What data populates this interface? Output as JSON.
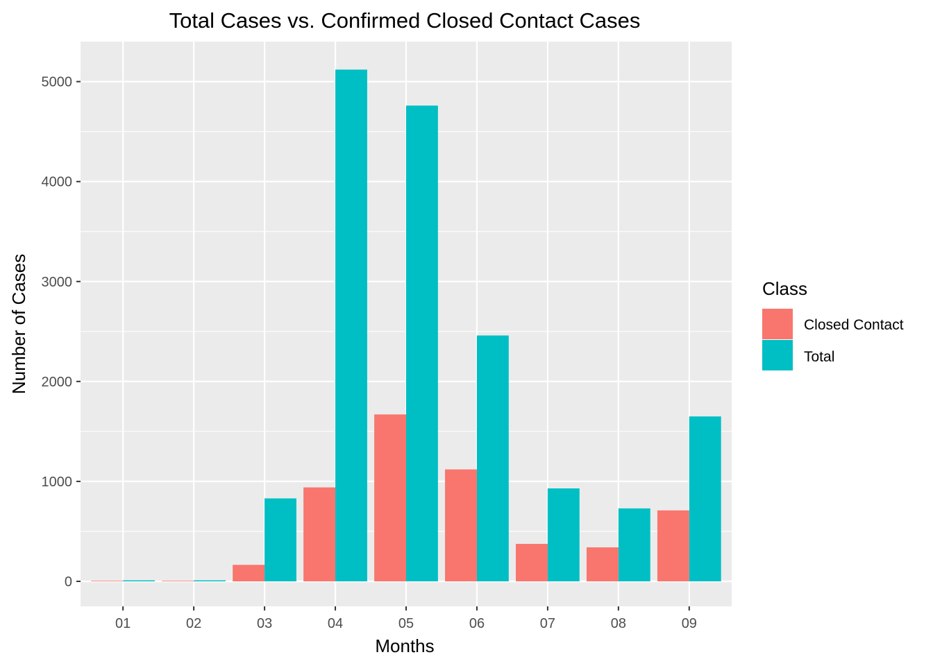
{
  "chart_data": {
    "type": "bar",
    "title": "Total Cases vs. Confirmed Closed Contact Cases",
    "xlabel": "Months",
    "ylabel": "Number of Cases",
    "categories": [
      "01",
      "02",
      "03",
      "04",
      "05",
      "06",
      "07",
      "08",
      "09"
    ],
    "ylim": [
      -250,
      5400
    ],
    "yticks": [
      0,
      1000,
      2000,
      3000,
      4000,
      5000
    ],
    "grid": true,
    "legend": {
      "title": "Class",
      "placement": "right",
      "entries": [
        "Closed Contact",
        "Total"
      ]
    },
    "series": [
      {
        "name": "Closed Contact",
        "color": "#F8766D",
        "values": [
          0,
          0,
          165,
          940,
          1670,
          1120,
          375,
          340,
          710
        ]
      },
      {
        "name": "Total",
        "color": "#00BFC4",
        "values": [
          10,
          10,
          830,
          5120,
          4760,
          2460,
          930,
          730,
          1650
        ]
      }
    ],
    "panel_background": "#EBEBEB",
    "gridline_color": "#FFFFFF"
  }
}
